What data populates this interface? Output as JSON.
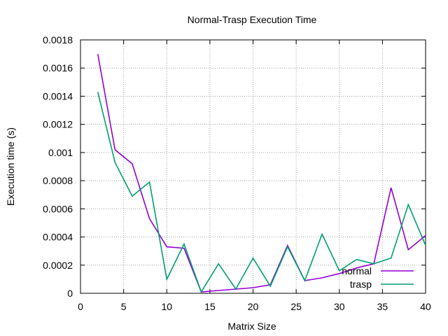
{
  "chart_data": {
    "type": "line",
    "title": "Normal-Trasp Execution Time",
    "xlabel": "Matrix Size",
    "ylabel": "Execution time (s)",
    "xlim": [
      0,
      40
    ],
    "ylim": [
      0,
      0.0018
    ],
    "xticks": [
      0,
      5,
      10,
      15,
      20,
      25,
      30,
      35,
      40
    ],
    "yticks": [
      0,
      0.0002,
      0.0004,
      0.0006,
      0.0008,
      0.001,
      0.0012,
      0.0014,
      0.0016,
      0.0018
    ],
    "xtick_labels": [
      "0",
      "5",
      "10",
      "15",
      "20",
      "25",
      "30",
      "35",
      "40"
    ],
    "ytick_labels": [
      "0",
      "0.0002",
      "0.0004",
      "0.0006",
      "0.0008",
      "0.001",
      "0.0012",
      "0.0014",
      "0.0016",
      "0.0018"
    ],
    "grid": true,
    "legend_position": "bottom-right",
    "x": [
      2,
      4,
      6,
      8,
      10,
      12,
      14,
      16,
      18,
      20,
      22,
      24,
      26,
      28,
      30,
      32,
      34,
      36,
      38,
      40
    ],
    "series": [
      {
        "name": "normal",
        "color": "#9400d3",
        "values": [
          0.0017,
          0.00102,
          0.00092,
          0.00053,
          0.00033,
          0.00032,
          1e-05,
          2e-05,
          3e-05,
          4e-05,
          6e-05,
          0.00034,
          9e-05,
          0.00011,
          0.00014,
          0.00018,
          0.00021,
          0.00075,
          0.00031,
          0.00041
        ]
      },
      {
        "name": "trasp",
        "color": "#009e73",
        "values": [
          0.00143,
          0.00093,
          0.00069,
          0.00079,
          0.0001,
          0.00035,
          1e-05,
          0.00021,
          3e-05,
          0.00025,
          5e-05,
          0.00033,
          9e-05,
          0.00042,
          0.00016,
          0.00024,
          0.00021,
          0.00025,
          0.00063,
          0.00034
        ]
      }
    ]
  }
}
